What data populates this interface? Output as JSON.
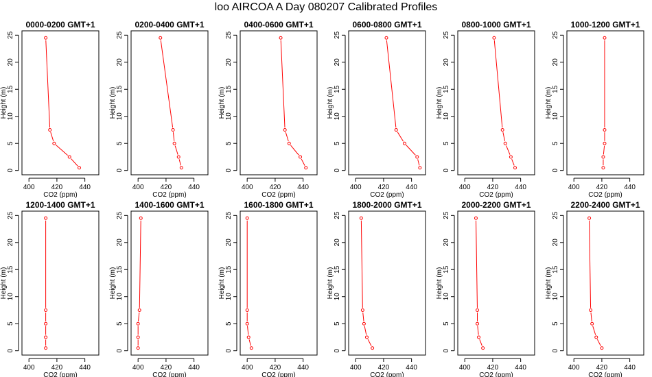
{
  "title": "loo AIRCOA A  Day 080207  Calibrated Profiles",
  "chart_data": [
    {
      "type": "line",
      "title": "0000-0200 GMT+1",
      "xlabel": "CO2 (ppm)",
      "ylabel": "Height (m)",
      "xlim": [
        395,
        450
      ],
      "ylim": [
        0,
        25
      ],
      "xticks": [
        400,
        420,
        440
      ],
      "yticks": [
        0,
        5,
        10,
        15,
        20,
        25
      ],
      "grid": false,
      "color": "#ff0000",
      "series": [
        {
          "x": [
            436,
            429,
            418,
            415,
            412
          ],
          "y": [
            0.5,
            2.5,
            5,
            7.5,
            24.5
          ]
        }
      ]
    },
    {
      "type": "line",
      "title": "0200-0400 GMT+1",
      "xlabel": "CO2 (ppm)",
      "ylabel": "Height (m)",
      "xlim": [
        395,
        450
      ],
      "ylim": [
        0,
        25
      ],
      "xticks": [
        400,
        420,
        440
      ],
      "yticks": [
        0,
        5,
        10,
        15,
        20,
        25
      ],
      "grid": false,
      "color": "#ff0000",
      "series": [
        {
          "x": [
            431,
            429,
            426,
            425,
            416
          ],
          " y": [
            0.5,
            2.5,
            5,
            7.5,
            24.5
          ],
          "y": [
            0.5,
            2.5,
            5,
            7.5,
            24.5
          ]
        }
      ]
    },
    {
      "type": "line",
      "title": "0400-0600 GMT+1",
      "xlabel": "CO2 (ppm)",
      "ylabel": "Height (m)",
      "xlim": [
        395,
        450
      ],
      "ylim": [
        0,
        25
      ],
      "xticks": [
        400,
        420,
        440
      ],
      "yticks": [
        0,
        5,
        10,
        15,
        20,
        25
      ],
      "grid": false,
      "color": "#ff0000",
      "series": [
        {
          "x": [
            442,
            438,
            430,
            427,
            424
          ],
          "y": [
            0.5,
            2.5,
            5,
            7.5,
            24.5
          ]
        }
      ]
    },
    {
      "type": "line",
      "title": "0600-0800 GMT+1",
      "xlabel": "CO2 (ppm)",
      "ylabel": "Height (m)",
      "xlim": [
        395,
        450
      ],
      "ylim": [
        0,
        25
      ],
      "xticks": [
        400,
        420,
        440
      ],
      "yticks": [
        0,
        5,
        10,
        15,
        20,
        25
      ],
      "grid": false,
      "color": "#ff0000",
      "series": [
        {
          "x": [
            446,
            444,
            435,
            429,
            422
          ],
          "y": [
            0.5,
            2.5,
            5,
            7.5,
            24.5
          ]
        }
      ]
    },
    {
      "type": "line",
      "title": "0800-1000 GMT+1",
      "xlabel": "CO2 (ppm)",
      "ylabel": "Height (m)",
      "xlim": [
        395,
        450
      ],
      "ylim": [
        0,
        25
      ],
      "xticks": [
        400,
        420,
        440
      ],
      "yticks": [
        0,
        5,
        10,
        15,
        20,
        25
      ],
      "grid": false,
      "color": "#ff0000",
      "series": [
        {
          "x": [
            436,
            433,
            429,
            427,
            421
          ],
          "y": [
            0.5,
            2.5,
            5,
            7.5,
            24.5
          ]
        }
      ]
    },
    {
      "type": "line",
      "title": "1000-1200 GMT+1",
      "xlabel": "CO2 (ppm)",
      "ylabel": "Height (m)",
      "xlim": [
        395,
        450
      ],
      "ylim": [
        0,
        25
      ],
      "xticks": [
        400,
        420,
        440
      ],
      "yticks": [
        0,
        5,
        10,
        15,
        20,
        25
      ],
      "grid": false,
      "color": "#ff0000",
      "series": [
        {
          "x": [
            421,
            421,
            422,
            422,
            422
          ],
          "y": [
            0.5,
            2.5,
            5,
            7.5,
            24.5
          ]
        }
      ]
    },
    {
      "type": "line",
      "title": "1200-1400 GMT+1",
      "xlabel": "CO2 (ppm)",
      "ylabel": "Height (m)",
      "xlim": [
        395,
        450
      ],
      "ylim": [
        0,
        25
      ],
      "xticks": [
        400,
        420,
        440
      ],
      "yticks": [
        0,
        5,
        10,
        15,
        20,
        25
      ],
      "grid": false,
      "color": "#ff0000",
      "series": [
        {
          "x": [
            412,
            412,
            412,
            412,
            412
          ],
          "y": [
            0.5,
            2.5,
            5,
            7.5,
            24.5
          ]
        }
      ]
    },
    {
      "type": "line",
      "title": "1400-1600 GMT+1",
      "xlabel": "CO2 (ppm)",
      "ylabel": "Height (m)",
      "xlim": [
        395,
        450
      ],
      "ylim": [
        0,
        25
      ],
      "xticks": [
        400,
        420,
        440
      ],
      "yticks": [
        0,
        5,
        10,
        15,
        20,
        25
      ],
      "grid": false,
      "color": "#ff0000",
      "series": [
        {
          "x": [
            400,
            400,
            400,
            401,
            402
          ],
          "y": [
            0.5,
            2.5,
            5,
            7.5,
            24.5
          ]
        }
      ]
    },
    {
      "type": "line",
      "title": "1600-1800 GMT+1",
      "xlabel": "CO2 (ppm)",
      "ylabel": "Height (m)",
      "xlim": [
        395,
        450
      ],
      "ylim": [
        0,
        25
      ],
      "xticks": [
        400,
        420,
        440
      ],
      "yticks": [
        0,
        5,
        10,
        15,
        20,
        25
      ],
      "grid": false,
      "color": "#ff0000",
      "series": [
        {
          "x": [
            403,
            401,
            400,
            400,
            400
          ],
          "y": [
            0.5,
            2.5,
            5,
            7.5,
            24.5
          ]
        }
      ]
    },
    {
      "type": "line",
      "title": "1800-2000 GMT+1",
      "xlabel": "CO2 (ppm)",
      "ylabel": "Height (m)",
      "xlim": [
        395,
        450
      ],
      "ylim": [
        0,
        25
      ],
      "xticks": [
        400,
        420,
        440
      ],
      "yticks": [
        0,
        5,
        10,
        15,
        20,
        25
      ],
      "grid": false,
      "color": "#ff0000",
      "series": [
        {
          "x": [
            412,
            408,
            406,
            405,
            404
          ],
          "y": [
            0.5,
            2.5,
            5,
            7.5,
            24.5
          ]
        }
      ]
    },
    {
      "type": "line",
      "title": "2000-2200 GMT+1",
      "xlabel": "CO2 (ppm)",
      "ylabel": "Height (m)",
      "xlim": [
        395,
        450
      ],
      "ylim": [
        0,
        25
      ],
      "xticks": [
        400,
        420,
        440
      ],
      "yticks": [
        0,
        5,
        10,
        15,
        20,
        25
      ],
      "grid": false,
      "color": "#ff0000",
      "series": [
        {
          "x": [
            413,
            410,
            409,
            409,
            408
          ],
          "y": [
            0.5,
            2.5,
            5,
            7.5,
            24.5
          ]
        }
      ]
    },
    {
      "type": "line",
      "title": "2200-2400 GMT+1",
      "xlabel": "CO2 (ppm)",
      "ylabel": "Height (m)",
      "xlim": [
        395,
        450
      ],
      "ylim": [
        0,
        25
      ],
      "xticks": [
        400,
        420,
        440
      ],
      "yticks": [
        0,
        5,
        10,
        15,
        20,
        25
      ],
      "grid": false,
      "color": "#ff0000",
      "series": [
        {
          "x": [
            420,
            416,
            413,
            412,
            411
          ],
          "y": [
            0.5,
            2.5,
            5,
            7.5,
            24.5
          ]
        }
      ]
    }
  ]
}
